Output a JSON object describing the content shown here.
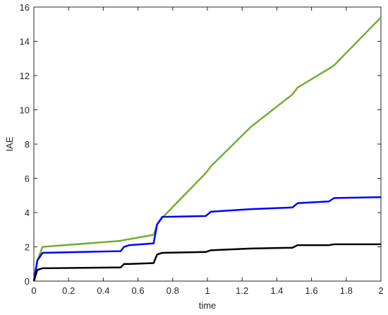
{
  "chart_data": {
    "type": "line",
    "x_label": "time",
    "y_label": "IAE",
    "x": [
      0,
      0.02,
      0.05,
      0.5,
      0.52,
      0.55,
      0.69,
      0.71,
      0.74,
      0.99,
      1.02,
      1.25,
      1.49,
      1.52,
      1.7,
      1.73,
      2.0
    ],
    "series": [
      {
        "color": "#77ac30",
        "values": [
          0,
          1.2,
          2.0,
          2.35,
          2.4,
          2.45,
          2.7,
          3.3,
          3.7,
          6.3,
          6.7,
          9.0,
          10.9,
          11.3,
          12.4,
          12.6,
          15.4
        ]
      },
      {
        "color": "#0000ff",
        "values": [
          0,
          1.2,
          1.65,
          1.75,
          2.0,
          2.1,
          2.2,
          3.3,
          3.75,
          3.8,
          4.05,
          4.2,
          4.3,
          4.55,
          4.65,
          4.85,
          4.9
        ]
      },
      {
        "color": "#000000",
        "values": [
          0,
          0.65,
          0.75,
          0.8,
          1.0,
          1.0,
          1.05,
          1.55,
          1.65,
          1.7,
          1.8,
          1.9,
          1.95,
          2.1,
          2.1,
          2.15,
          2.15
        ]
      }
    ],
    "xlim": [
      0,
      2
    ],
    "xticks": [
      0,
      0.2,
      0.4,
      0.6,
      0.8,
      1,
      1.2,
      1.4,
      1.6,
      1.8,
      2
    ],
    "ylim": [
      0,
      16
    ],
    "yticks": [
      0,
      2,
      4,
      6,
      8,
      10,
      12,
      14,
      16
    ],
    "grid": false
  }
}
